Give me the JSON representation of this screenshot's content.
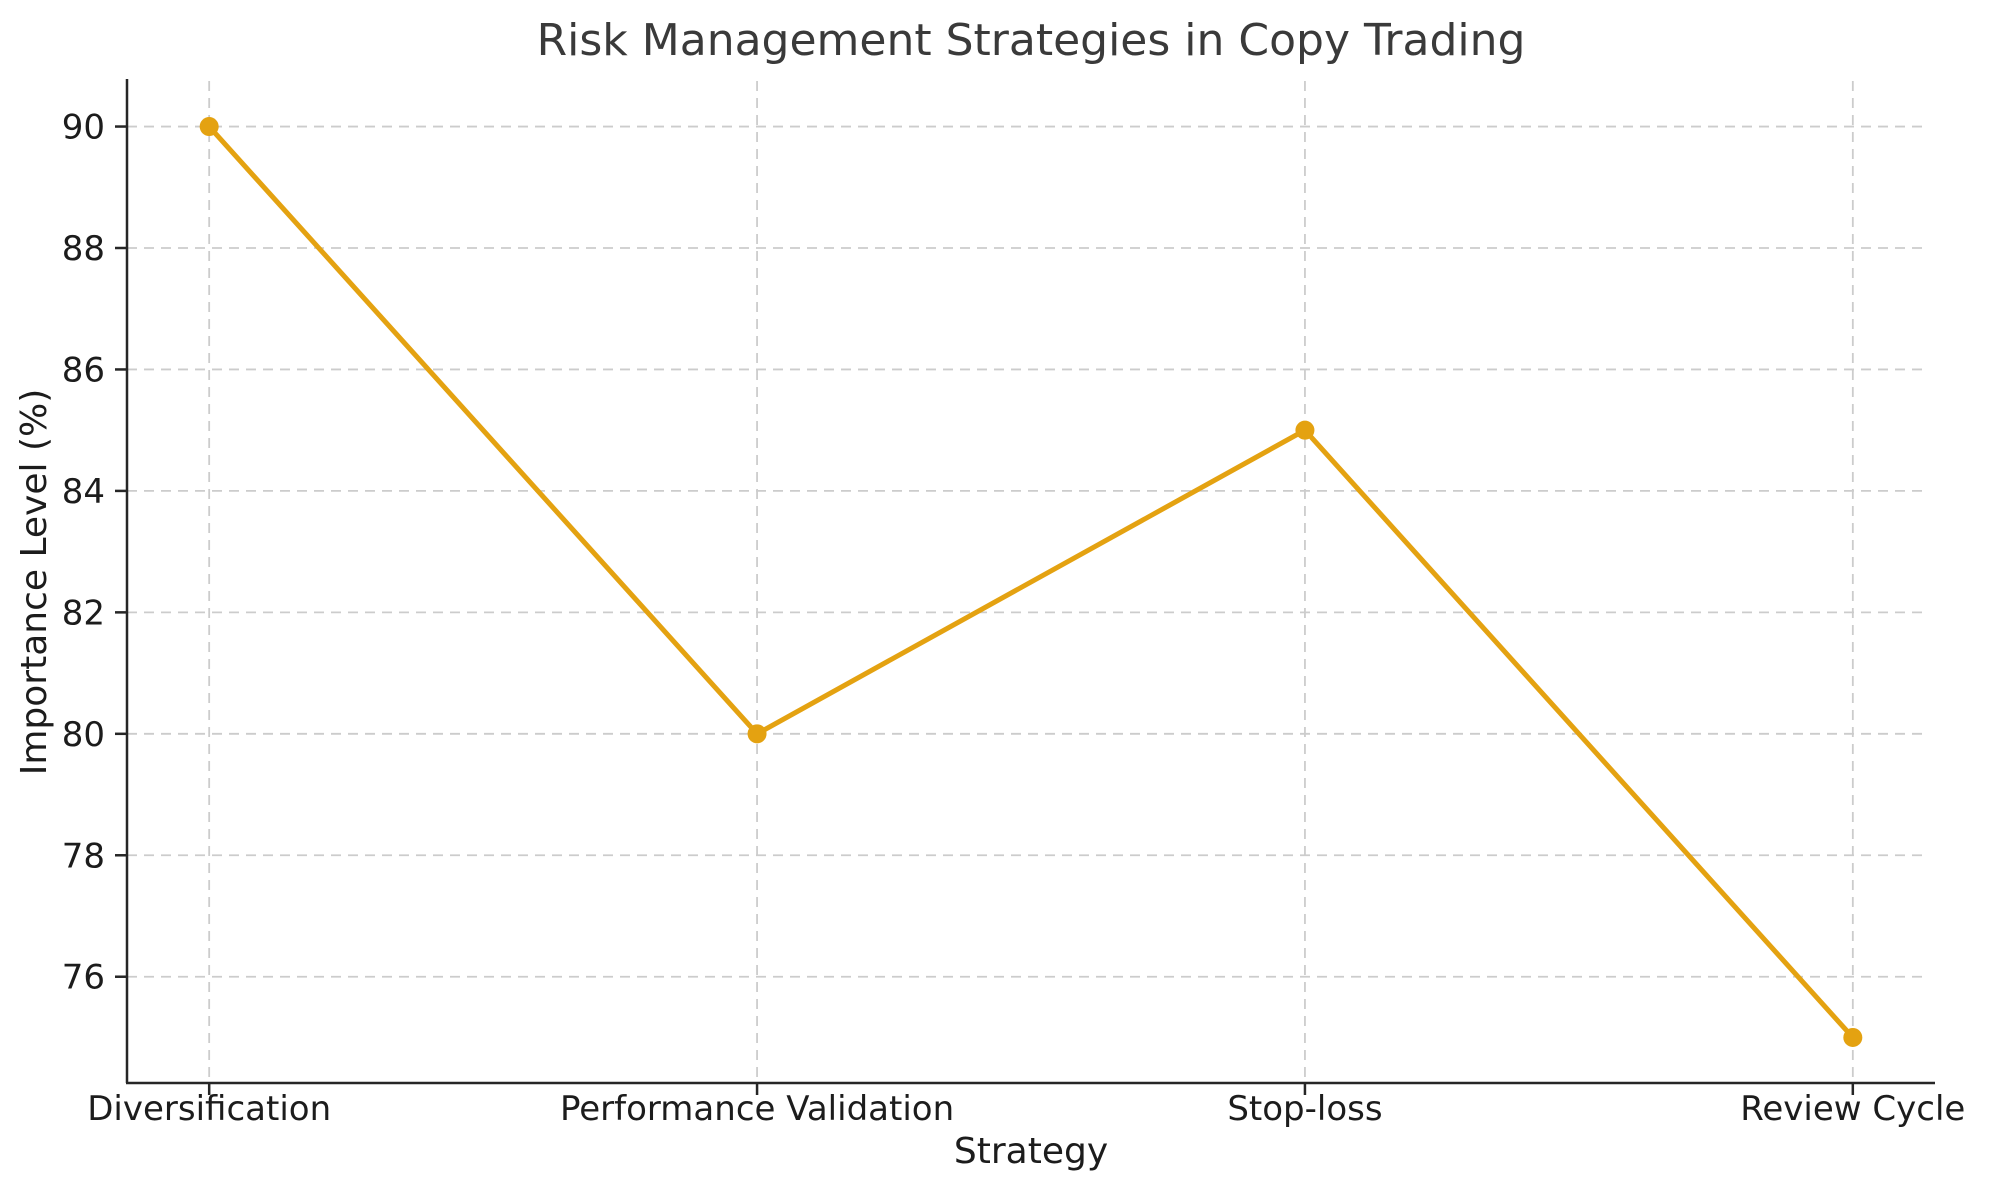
{
  "chart_data": {
    "type": "line",
    "title": "Risk Management Strategies in Copy Trading",
    "xlabel": "Strategy",
    "ylabel": "Importance Level (%)",
    "categories": [
      "Diversification",
      "Performance Validation",
      "Stop-loss",
      "Review Cycle"
    ],
    "values": [
      90,
      80,
      85,
      75
    ],
    "series": [
      {
        "name": "Importance Level",
        "values": [
          90,
          80,
          85,
          75
        ]
      }
    ],
    "yticks": [
      76,
      78,
      80,
      82,
      84,
      86,
      88,
      90
    ],
    "ylim": [
      74.25,
      90.75
    ],
    "grid": "both-dashed",
    "legend_position": "none",
    "colors": {
      "line": "#E4A211",
      "marker": "#E4A211",
      "grid": "#CCCCCC",
      "spine": "#262626",
      "title_text": "#3A3A3A",
      "tick_text": "#1C1C1C",
      "background": "#FFFFFF"
    }
  }
}
